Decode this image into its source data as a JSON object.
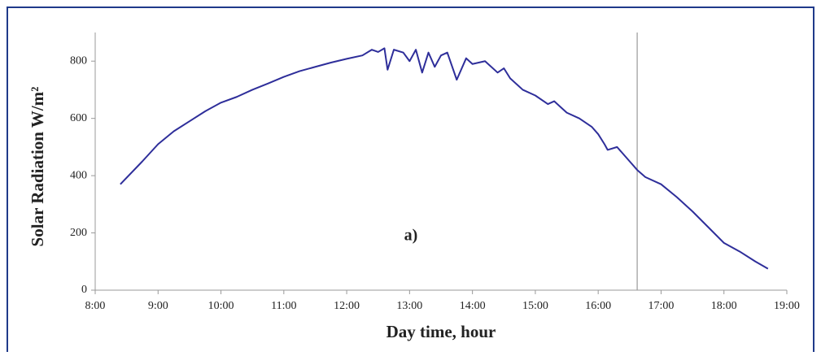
{
  "chart_data": {
    "type": "line",
    "y_label": "Solar Radiation W/m²",
    "x_label": "Day time, hour",
    "annotation": "a)",
    "xlim": [
      8,
      19
    ],
    "xticks": [
      {
        "value": 8,
        "label": "8:00"
      },
      {
        "value": 9,
        "label": "9:00"
      },
      {
        "value": 10,
        "label": "10:00"
      },
      {
        "value": 11,
        "label": "11:00"
      },
      {
        "value": 12,
        "label": "12:00"
      },
      {
        "value": 13,
        "label": "13:00"
      },
      {
        "value": 14,
        "label": "14:00"
      },
      {
        "value": 15,
        "label": "15:00"
      },
      {
        "value": 16,
        "label": "16:00"
      },
      {
        "value": 17,
        "label": "17:00"
      },
      {
        "value": 18,
        "label": "18:00"
      },
      {
        "value": 19,
        "label": "19:00"
      }
    ],
    "ylim": [
      0,
      900
    ],
    "yticks": [
      0,
      200,
      400,
      600,
      800
    ],
    "vline_x": 16.62,
    "x": [
      8.4,
      8.75,
      9,
      9.25,
      9.5,
      9.75,
      10,
      10.25,
      10.5,
      10.75,
      11,
      11.25,
      11.5,
      11.75,
      12,
      12.25,
      12.4,
      12.5,
      12.6,
      12.65,
      12.75,
      12.9,
      13,
      13.1,
      13.2,
      13.3,
      13.4,
      13.5,
      13.6,
      13.75,
      13.9,
      14,
      14.2,
      14.4,
      14.5,
      14.6,
      14.8,
      15,
      15.2,
      15.3,
      15.5,
      15.7,
      15.9,
      16,
      16.1,
      16.15,
      16.3,
      16.5,
      16.62,
      16.75,
      17,
      17.25,
      17.5,
      17.75,
      18,
      18.25,
      18.5,
      18.7
    ],
    "series": [
      {
        "color": "#2e2e9a",
        "values": [
          370,
          450,
          510,
          555,
          590,
          625,
          655,
          675,
          700,
          722,
          745,
          765,
          780,
          795,
          808,
          820,
          840,
          832,
          845,
          770,
          840,
          830,
          800,
          840,
          760,
          830,
          780,
          820,
          830,
          735,
          810,
          790,
          800,
          760,
          775,
          740,
          700,
          680,
          650,
          660,
          620,
          600,
          570,
          545,
          510,
          490,
          500,
          450,
          420,
          395,
          370,
          325,
          275,
          220,
          165,
          135,
          100,
          75
        ]
      }
    ]
  }
}
